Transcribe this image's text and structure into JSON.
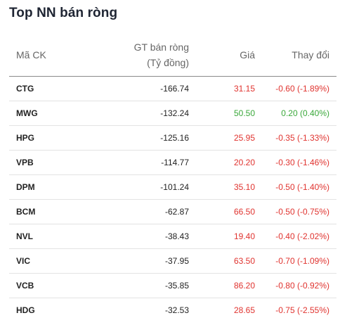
{
  "title": "Top NN bán ròng",
  "columns": {
    "code": "Mã CK",
    "gt_line1": "GT bán ròng",
    "gt_line2": "(Tỷ đồng)",
    "price": "Giá",
    "change": "Thay đổi"
  },
  "colors": {
    "down": "#e0332f",
    "up": "#3aa83a"
  },
  "rows": [
    {
      "code": "CTG",
      "gt": "-166.74",
      "price": "31.15",
      "change": "-0.60 (-1.89%)",
      "dir": "down"
    },
    {
      "code": "MWG",
      "gt": "-132.24",
      "price": "50.50",
      "change": "0.20 (0.40%)",
      "dir": "up"
    },
    {
      "code": "HPG",
      "gt": "-125.16",
      "price": "25.95",
      "change": "-0.35 (-1.33%)",
      "dir": "down"
    },
    {
      "code": "VPB",
      "gt": "-114.77",
      "price": "20.20",
      "change": "-0.30 (-1.46%)",
      "dir": "down"
    },
    {
      "code": "DPM",
      "gt": "-101.24",
      "price": "35.10",
      "change": "-0.50 (-1.40%)",
      "dir": "down"
    },
    {
      "code": "BCM",
      "gt": "-62.87",
      "price": "66.50",
      "change": "-0.50 (-0.75%)",
      "dir": "down"
    },
    {
      "code": "NVL",
      "gt": "-38.43",
      "price": "19.40",
      "change": "-0.40 (-2.02%)",
      "dir": "down"
    },
    {
      "code": "VIC",
      "gt": "-37.95",
      "price": "63.50",
      "change": "-0.70 (-1.09%)",
      "dir": "down"
    },
    {
      "code": "VCB",
      "gt": "-35.85",
      "price": "86.20",
      "change": "-0.80 (-0.92%)",
      "dir": "down"
    },
    {
      "code": "HDG",
      "gt": "-32.53",
      "price": "28.65",
      "change": "-0.75 (-2.55%)",
      "dir": "down"
    }
  ]
}
